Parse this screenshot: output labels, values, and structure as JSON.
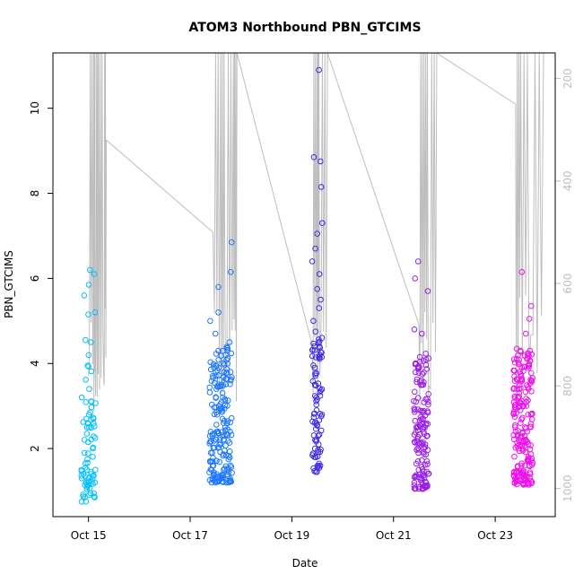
{
  "chart_data": {
    "type": "scatter",
    "title": "ATOM3 Northbound PBN_GTCIMS",
    "xlabel": "Date",
    "ylabel": "PBN_GTCIMS",
    "x_ticks": [
      "Oct 15",
      "Oct 17",
      "Oct 19",
      "Oct 21",
      "Oct 23"
    ],
    "x_tick_values": [
      0,
      2,
      4,
      6,
      8
    ],
    "xlim": [
      -0.7,
      9.18
    ],
    "y_ticks": [
      2,
      4,
      6,
      8,
      10
    ],
    "ylim": [
      0.4,
      11.3
    ],
    "y2_ticks": [
      200,
      400,
      600,
      800,
      1000
    ],
    "y2lim": [
      1055,
      150
    ],
    "y2_reversed": true,
    "y2_label": "",
    "grid": false,
    "point_color_scale": [
      "#00bfff",
      "#1e90ff",
      "#3a2bf0",
      "#8a2be2",
      "#ff00ff"
    ],
    "secondary_series_color": "#bebebe",
    "point_clusters": [
      {
        "center": 0.0,
        "width": 0.28,
        "count": 85,
        "y_values": [
          1.05,
          1.1,
          1.15,
          1.2,
          1.25,
          1.3,
          1.35,
          1.4,
          1.45,
          1.5,
          1.55,
          1.65,
          1.75,
          1.9,
          2.0,
          2.15,
          2.5,
          2.7,
          2.85,
          3.1,
          3.2,
          3.4,
          3.95,
          4.2,
          4.5,
          4.55,
          5.15,
          5.2,
          5.6,
          5.85,
          6.1,
          6.2,
          0.75,
          0.95
        ],
        "color": "#00bfff"
      },
      {
        "center": 2.6,
        "width": 0.45,
        "count": 200,
        "y_values": [
          1.2,
          1.3,
          1.5,
          1.7,
          1.9,
          2.1,
          2.2,
          2.4,
          2.5,
          2.6,
          2.7,
          2.8,
          2.9,
          3.0,
          3.2,
          3.4,
          3.6,
          3.8,
          4.0,
          4.3,
          4.5,
          4.7,
          5.0,
          5.2,
          5.8,
          6.15,
          6.85
        ],
        "color": "#1e78ff"
      },
      {
        "center": 4.5,
        "width": 0.2,
        "count": 95,
        "y_values": [
          1.45,
          1.55,
          1.8,
          2.0,
          2.1,
          2.3,
          2.6,
          2.9,
          3.2,
          3.5,
          3.9,
          4.15,
          4.4,
          4.75,
          5.0,
          5.3,
          5.5,
          5.75,
          6.1,
          6.4,
          6.7,
          7.05,
          7.3,
          8.15,
          8.75,
          8.85,
          10.9
        ],
        "color": "#3d2bea"
      },
      {
        "center": 6.55,
        "width": 0.3,
        "count": 150,
        "y_values": [
          1.05,
          1.3,
          1.5,
          1.7,
          1.9,
          2.1,
          2.3,
          2.5,
          2.7,
          3.1,
          3.5,
          3.75,
          4.0,
          4.7,
          4.8,
          5.7,
          6.0,
          6.4
        ],
        "color": "#9a1fe8"
      },
      {
        "center": 8.55,
        "width": 0.38,
        "count": 210,
        "y_values": [
          1.15,
          1.4,
          1.6,
          1.8,
          2.0,
          2.2,
          2.4,
          2.6,
          2.8,
          3.0,
          3.2,
          3.4,
          3.6,
          3.8,
          4.1,
          4.3,
          4.7,
          5.05,
          5.35,
          6.15
        ],
        "color": "#ee10ee"
      }
    ],
    "secondary_line": [
      [
        0.0,
        780
      ],
      [
        0.1,
        150
      ],
      [
        0.14,
        820
      ],
      [
        0.2,
        150
      ],
      [
        0.3,
        790
      ],
      [
        0.35,
        320
      ],
      [
        2.45,
        500
      ],
      [
        2.6,
        150
      ],
      [
        2.7,
        800
      ],
      [
        2.85,
        150
      ],
      [
        2.92,
        150
      ],
      [
        4.4,
        720
      ],
      [
        4.5,
        150
      ],
      [
        4.55,
        780
      ],
      [
        4.7,
        150
      ],
      [
        6.5,
        680
      ],
      [
        6.6,
        150
      ],
      [
        6.7,
        800
      ],
      [
        6.85,
        150
      ],
      [
        8.4,
        250
      ],
      [
        8.5,
        150
      ],
      [
        8.7,
        700
      ],
      [
        8.95,
        150
      ]
    ]
  }
}
